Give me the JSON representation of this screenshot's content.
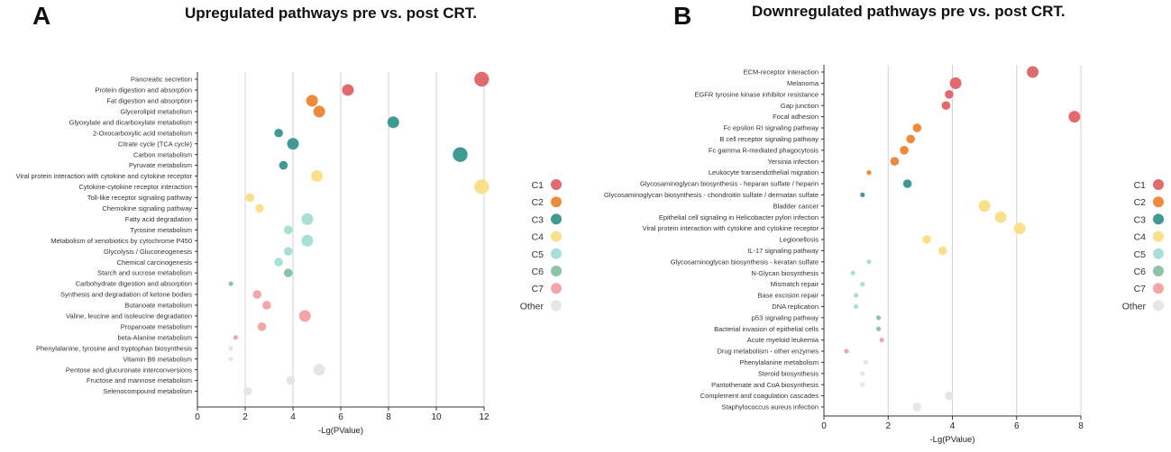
{
  "panels": {
    "a": {
      "letter": "A",
      "title": "Upregulated pathways pre vs. post CRT."
    },
    "b": {
      "letter": "B",
      "title": "Downregulated pathways pre vs. post CRT."
    }
  },
  "colors": {
    "C1": "#e06a6e",
    "C2": "#ee8a3c",
    "C3": "#3f9a93",
    "C4": "#fbe08c",
    "C5": "#a8e0d8",
    "C6": "#8fc3a6",
    "C7": "#f4a5a8",
    "Other": "#e6e6e6"
  },
  "chart_data": [
    {
      "type": "scatter",
      "title": "Upregulated pathways pre vs. post CRT.",
      "xlabel": "-Lg(PValue)",
      "ylabel": "",
      "xlim": [
        0,
        12
      ],
      "xticks": [
        0,
        2,
        4,
        6,
        8,
        10,
        12
      ],
      "grid": true,
      "legend": {
        "position": "right",
        "entries": [
          "C1",
          "C2",
          "C3",
          "C4",
          "C5",
          "C6",
          "C7",
          "Other"
        ]
      },
      "points": [
        {
          "label": "Pancreatic secretion",
          "x": 11.9,
          "cluster": "C1",
          "size": 3
        },
        {
          "label": "Protein digestion and absorption",
          "x": 6.3,
          "cluster": "C1",
          "size": 2
        },
        {
          "label": "Fat digestion and absorption",
          "x": 4.8,
          "cluster": "C2",
          "size": 2
        },
        {
          "label": "Glycerolipid metabolism",
          "x": 5.1,
          "cluster": "C2",
          "size": 2
        },
        {
          "label": "Glyoxylate and dicarboxylate metabolism",
          "x": 8.2,
          "cluster": "C3",
          "size": 2
        },
        {
          "label": "2-Oxocarboxylic acid metabolism",
          "x": 3.4,
          "cluster": "C3",
          "size": 1
        },
        {
          "label": "Citrate cycle (TCA cycle)",
          "x": 4.0,
          "cluster": "C3",
          "size": 2
        },
        {
          "label": "Carbon metabolism",
          "x": 11.0,
          "cluster": "C3",
          "size": 3
        },
        {
          "label": "Pyruvate metabolism",
          "x": 3.6,
          "cluster": "C3",
          "size": 1
        },
        {
          "label": "Viral protein interaction with cytokine and cytokine receptor",
          "x": 5.0,
          "cluster": "C4",
          "size": 2
        },
        {
          "label": "Cytokine-cytokine receptor interaction",
          "x": 11.9,
          "cluster": "C4",
          "size": 3
        },
        {
          "label": "Toll-like receptor signaling pathway",
          "x": 2.2,
          "cluster": "C4",
          "size": 1
        },
        {
          "label": "Chemokine signaling pathway",
          "x": 2.6,
          "cluster": "C4",
          "size": 1
        },
        {
          "label": "Fatty acid degradation",
          "x": 4.6,
          "cluster": "C5",
          "size": 2
        },
        {
          "label": "Tyrosine metabolism",
          "x": 3.8,
          "cluster": "C5",
          "size": 1
        },
        {
          "label": "Metabolism of xenobiotics by cytochrome P450",
          "x": 4.6,
          "cluster": "C5",
          "size": 2
        },
        {
          "label": "Glycolysis / Gluconeogenesis",
          "x": 3.8,
          "cluster": "C5",
          "size": 1
        },
        {
          "label": "Chemical carcinogenesis",
          "x": 3.4,
          "cluster": "C5",
          "size": 1
        },
        {
          "label": "Starch and sucrose metabolism",
          "x": 3.8,
          "cluster": "C6",
          "size": 1
        },
        {
          "label": "Carbohydrate digestion and absorption",
          "x": 1.4,
          "cluster": "C6",
          "size": 0
        },
        {
          "label": "Synthesis and degradation of ketone bodies",
          "x": 2.5,
          "cluster": "C7",
          "size": 1
        },
        {
          "label": "Butanoate metabolism",
          "x": 2.9,
          "cluster": "C7",
          "size": 1
        },
        {
          "label": "Valine, leucine and isoleucine degradation",
          "x": 4.5,
          "cluster": "C7",
          "size": 2
        },
        {
          "label": "Propanoate metabolism",
          "x": 2.7,
          "cluster": "C7",
          "size": 1
        },
        {
          "label": "beta-Alanine metabolism",
          "x": 1.6,
          "cluster": "C7",
          "size": 0
        },
        {
          "label": "Phenylalanine, tyrosine and tryptophan biosynthesis",
          "x": 1.4,
          "cluster": "Other",
          "size": 0
        },
        {
          "label": "Vitamin B6 metabolism",
          "x": 1.4,
          "cluster": "Other",
          "size": 0
        },
        {
          "label": "Pentose and glucuronate interconversions",
          "x": 5.1,
          "cluster": "Other",
          "size": 2
        },
        {
          "label": "Fructose and mannose metabolism",
          "x": 3.9,
          "cluster": "Other",
          "size": 1
        },
        {
          "label": "Selenocompound metabolism",
          "x": 2.1,
          "cluster": "Other",
          "size": 1
        }
      ]
    },
    {
      "type": "scatter",
      "title": "Downregulated pathways pre vs. post CRT.",
      "xlabel": "-Lg(PValue)",
      "ylabel": "",
      "xlim": [
        0,
        8
      ],
      "xticks": [
        0,
        2,
        4,
        6,
        8
      ],
      "grid": true,
      "legend": {
        "position": "right",
        "entries": [
          "C1",
          "C2",
          "C3",
          "C4",
          "C5",
          "C6",
          "C7",
          "Other"
        ]
      },
      "points": [
        {
          "label": "ECM-receptor interaction",
          "x": 6.5,
          "cluster": "C1",
          "size": 2
        },
        {
          "label": "Melanoma",
          "x": 4.1,
          "cluster": "C1",
          "size": 2
        },
        {
          "label": "EGFR tyrosine kinase inhibitor resistance",
          "x": 3.9,
          "cluster": "C1",
          "size": 1
        },
        {
          "label": "Gap junction",
          "x": 3.8,
          "cluster": "C1",
          "size": 1
        },
        {
          "label": "Focal adhesion",
          "x": 7.8,
          "cluster": "C1",
          "size": 2
        },
        {
          "label": "Fc epsilon RI signaling pathway",
          "x": 2.9,
          "cluster": "C2",
          "size": 1
        },
        {
          "label": "B cell receptor signaling pathway",
          "x": 2.7,
          "cluster": "C2",
          "size": 1
        },
        {
          "label": "Fc gamma R-mediated phagocytosis",
          "x": 2.5,
          "cluster": "C2",
          "size": 1
        },
        {
          "label": "Yersinia infection",
          "x": 2.2,
          "cluster": "C2",
          "size": 1
        },
        {
          "label": "Leukocyte transendothelial migration",
          "x": 1.4,
          "cluster": "C2",
          "size": 0
        },
        {
          "label": "Glycosaminoglycan biosynthesis - heparan sulfate / heparin",
          "x": 2.6,
          "cluster": "C3",
          "size": 1
        },
        {
          "label": "Glycosaminoglycan biosynthesis - chondroitin sulfate / dermatan sulfate",
          "x": 1.2,
          "cluster": "C3",
          "size": 0
        },
        {
          "label": "Bladder cancer",
          "x": 5.0,
          "cluster": "C4",
          "size": 2
        },
        {
          "label": "Epithelial cell signaling in Helicobacter pylori infection",
          "x": 5.5,
          "cluster": "C4",
          "size": 2
        },
        {
          "label": "Viral protein interaction with cytokine and cytokine receptor",
          "x": 6.1,
          "cluster": "C4",
          "size": 2
        },
        {
          "label": "Legionellosis",
          "x": 3.2,
          "cluster": "C4",
          "size": 1
        },
        {
          "label": "IL-17 signaling pathway",
          "x": 3.7,
          "cluster": "C4",
          "size": 1
        },
        {
          "label": "Glycosaminoglycan biosynthesis - keratan sulfate",
          "x": 1.4,
          "cluster": "C5",
          "size": 0
        },
        {
          "label": "N-Glycan biosynthesis",
          "x": 0.9,
          "cluster": "C5",
          "size": 0
        },
        {
          "label": "Mismatch repair",
          "x": 1.2,
          "cluster": "C5",
          "size": 0
        },
        {
          "label": "Base excision repair",
          "x": 1.0,
          "cluster": "C5",
          "size": 0
        },
        {
          "label": "DNA replication",
          "x": 1.0,
          "cluster": "C5",
          "size": 0
        },
        {
          "label": "p53 signaling pathway",
          "x": 1.7,
          "cluster": "C6",
          "size": 0
        },
        {
          "label": "Bacterial invasion of epithelial cells",
          "x": 1.7,
          "cluster": "C6",
          "size": 0
        },
        {
          "label": "Acute myeloid leukemia",
          "x": 1.8,
          "cluster": "C7",
          "size": 0
        },
        {
          "label": "Drug metabolism - other enzymes",
          "x": 0.7,
          "cluster": "C7",
          "size": 0
        },
        {
          "label": "Phenylalanine metabolism",
          "x": 1.3,
          "cluster": "Other",
          "size": 0
        },
        {
          "label": "Steroid biosynthesis",
          "x": 1.2,
          "cluster": "Other",
          "size": 0
        },
        {
          "label": "Pantothenate and CoA biosynthesis",
          "x": 1.2,
          "cluster": "Other",
          "size": 0
        },
        {
          "label": "Complement and coagulation cascades",
          "x": 3.9,
          "cluster": "Other",
          "size": 1
        },
        {
          "label": "Staphylococcus aureus infection",
          "x": 2.9,
          "cluster": "Other",
          "size": 1
        }
      ]
    }
  ]
}
